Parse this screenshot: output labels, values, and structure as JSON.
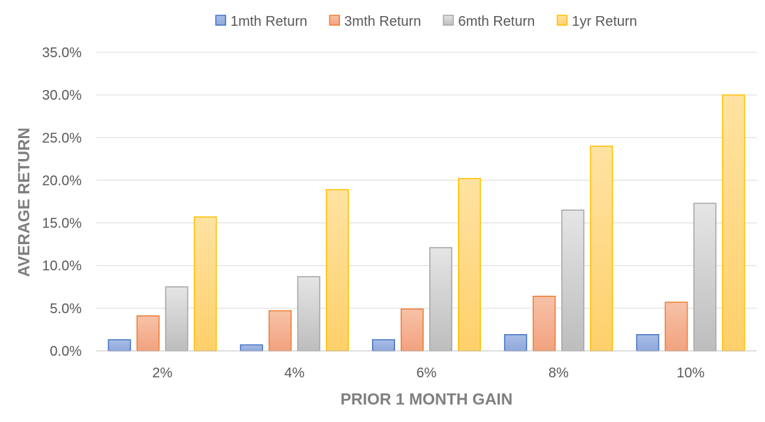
{
  "chart_data": {
    "type": "bar",
    "categories": [
      "2%",
      "4%",
      "6%",
      "8%",
      "10%"
    ],
    "series": [
      {
        "name": "1mth Return",
        "values": [
          1.3,
          0.7,
          1.3,
          1.9,
          1.9
        ],
        "color": "#4472c4",
        "fill_top": "#a9bde6",
        "fill_bottom": "#8fa8dc"
      },
      {
        "name": "3mth Return",
        "values": [
          4.1,
          4.7,
          4.9,
          6.4,
          5.7
        ],
        "color": "#ed7d31",
        "fill_top": "#f7c2a8",
        "fill_bottom": "#f2a27f"
      },
      {
        "name": "6mth Return",
        "values": [
          7.5,
          8.7,
          12.1,
          16.5,
          17.3
        ],
        "color": "#a5a5a5",
        "fill_top": "#e5e5e5",
        "fill_bottom": "#bdbdbd"
      },
      {
        "name": "1yr Return",
        "values": [
          15.7,
          18.9,
          20.2,
          24.0,
          30.0
        ],
        "color": "#ffc000",
        "fill_top": "#ffe2a2",
        "fill_bottom": "#ffd06a"
      }
    ],
    "title": "",
    "xlabel": "PRIOR 1 MONTH GAIN",
    "ylabel": "AVERAGE RETURN",
    "ylim": [
      0,
      35
    ],
    "yticks": [
      "0.0%",
      "5.0%",
      "10.0%",
      "15.0%",
      "20.0%",
      "25.0%",
      "30.0%",
      "35.0%"
    ],
    "grid": true,
    "legend_position": "top-center"
  }
}
